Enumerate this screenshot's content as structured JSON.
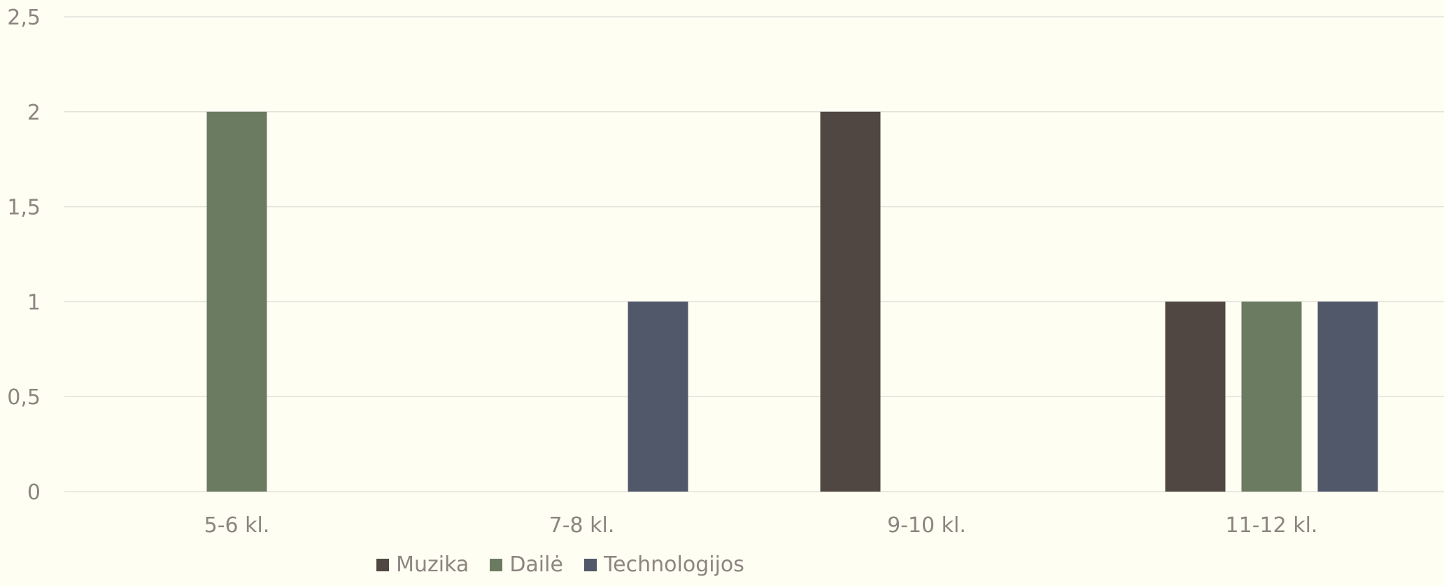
{
  "chart_data": {
    "type": "bar",
    "categories": [
      "5-6  kl.",
      "7-8  kl.",
      "9-10  kl.",
      "11-12  kl."
    ],
    "series": [
      {
        "name": "Muzika",
        "values": [
          0,
          0,
          2,
          1
        ],
        "color": "#504742"
      },
      {
        "name": "Dailė",
        "values": [
          2,
          0,
          0,
          1
        ],
        "color": "#6b7b62"
      },
      {
        "name": "Technologijos",
        "values": [
          0,
          1,
          0,
          1
        ],
        "color": "#505869"
      }
    ],
    "ylim": [
      0,
      2.5
    ],
    "yticks": [
      "0",
      "0,5",
      "1",
      "1,5",
      "2",
      "2,5"
    ],
    "ytick_values": [
      0,
      0.5,
      1,
      1.5,
      2,
      2.5
    ],
    "grid": true,
    "legend_position": "bottom",
    "gridline_color": "#e2e2dc",
    "text_color": "#8c8580"
  }
}
